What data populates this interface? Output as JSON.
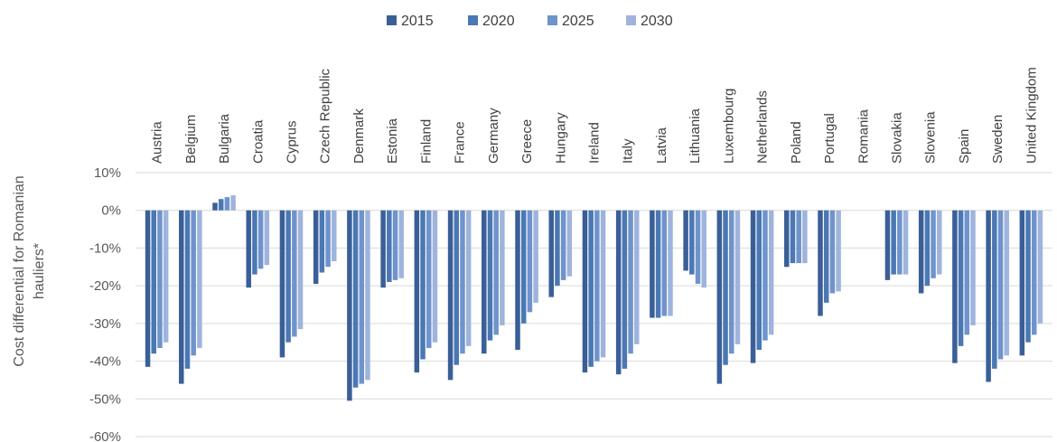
{
  "chart_data": {
    "type": "bar",
    "ylabel": "Cost differential for Romanian hauliers*",
    "ylim": [
      -60,
      10
    ],
    "yticks": [
      10,
      0,
      -10,
      -20,
      -30,
      -40,
      -50,
      -60
    ],
    "ytick_labels": [
      "10%",
      "0%",
      "-10%",
      "-20%",
      "-30%",
      "-40%",
      "-50%",
      "-60%"
    ],
    "grid": true,
    "legend_position": "top",
    "colors": [
      "#3a5f98",
      "#4a78b4",
      "#6f93cc",
      "#9fb4dc"
    ],
    "categories": [
      "Austria",
      "Belgium",
      "Bulgaria",
      "Croatia",
      "Cyprus",
      "Czech Republic",
      "Denmark",
      "Estonia",
      "Finland",
      "France",
      "Germany",
      "Greece",
      "Hungary",
      "Ireland",
      "Italy",
      "Latvia",
      "Lithuania",
      "Luxembourg",
      "Netherlands",
      "Poland",
      "Portugal",
      "Romania",
      "Slovakia",
      "Slovenia",
      "Spain",
      "Sweden",
      "United Kingdom"
    ],
    "series": [
      {
        "name": "2015",
        "values": [
          -41.5,
          -46,
          2,
          -20.5,
          -39,
          -19.5,
          -50.5,
          -20.5,
          -43,
          -45,
          -38,
          -37,
          -23,
          -43,
          -43.5,
          -28.5,
          -16,
          -46,
          -40.5,
          -15,
          -28,
          0,
          -18.5,
          -22,
          -40.5,
          -45.5,
          -38.5
        ]
      },
      {
        "name": "2020",
        "values": [
          -38,
          -42,
          3,
          -17,
          -35,
          -16.5,
          -47,
          -19,
          -39.5,
          -41,
          -34.5,
          -30,
          -20,
          -41.5,
          -42,
          -28.5,
          -17,
          -41,
          -37,
          -14,
          -24.5,
          0,
          -17,
          -20,
          -36,
          -42,
          -35
        ]
      },
      {
        "name": "2025",
        "values": [
          -36.5,
          -38.5,
          3.5,
          -15.5,
          -33.5,
          -15,
          -46,
          -18.5,
          -36.5,
          -38,
          -33,
          -27,
          -18.5,
          -40,
          -38,
          -28,
          -19.5,
          -38,
          -34.5,
          -14,
          -22,
          0,
          -17,
          -18,
          -33,
          -39.5,
          -33
        ]
      },
      {
        "name": "2030",
        "values": [
          -35,
          -36.5,
          4,
          -14.5,
          -31.5,
          -13.5,
          -45,
          -18,
          -35,
          -36,
          -30.5,
          -24.5,
          -17.5,
          -39,
          -35.5,
          -28,
          -20.5,
          -35.5,
          -33,
          -14,
          -21.5,
          0,
          -17,
          -17,
          -30.5,
          -38.5,
          -30
        ]
      }
    ]
  }
}
